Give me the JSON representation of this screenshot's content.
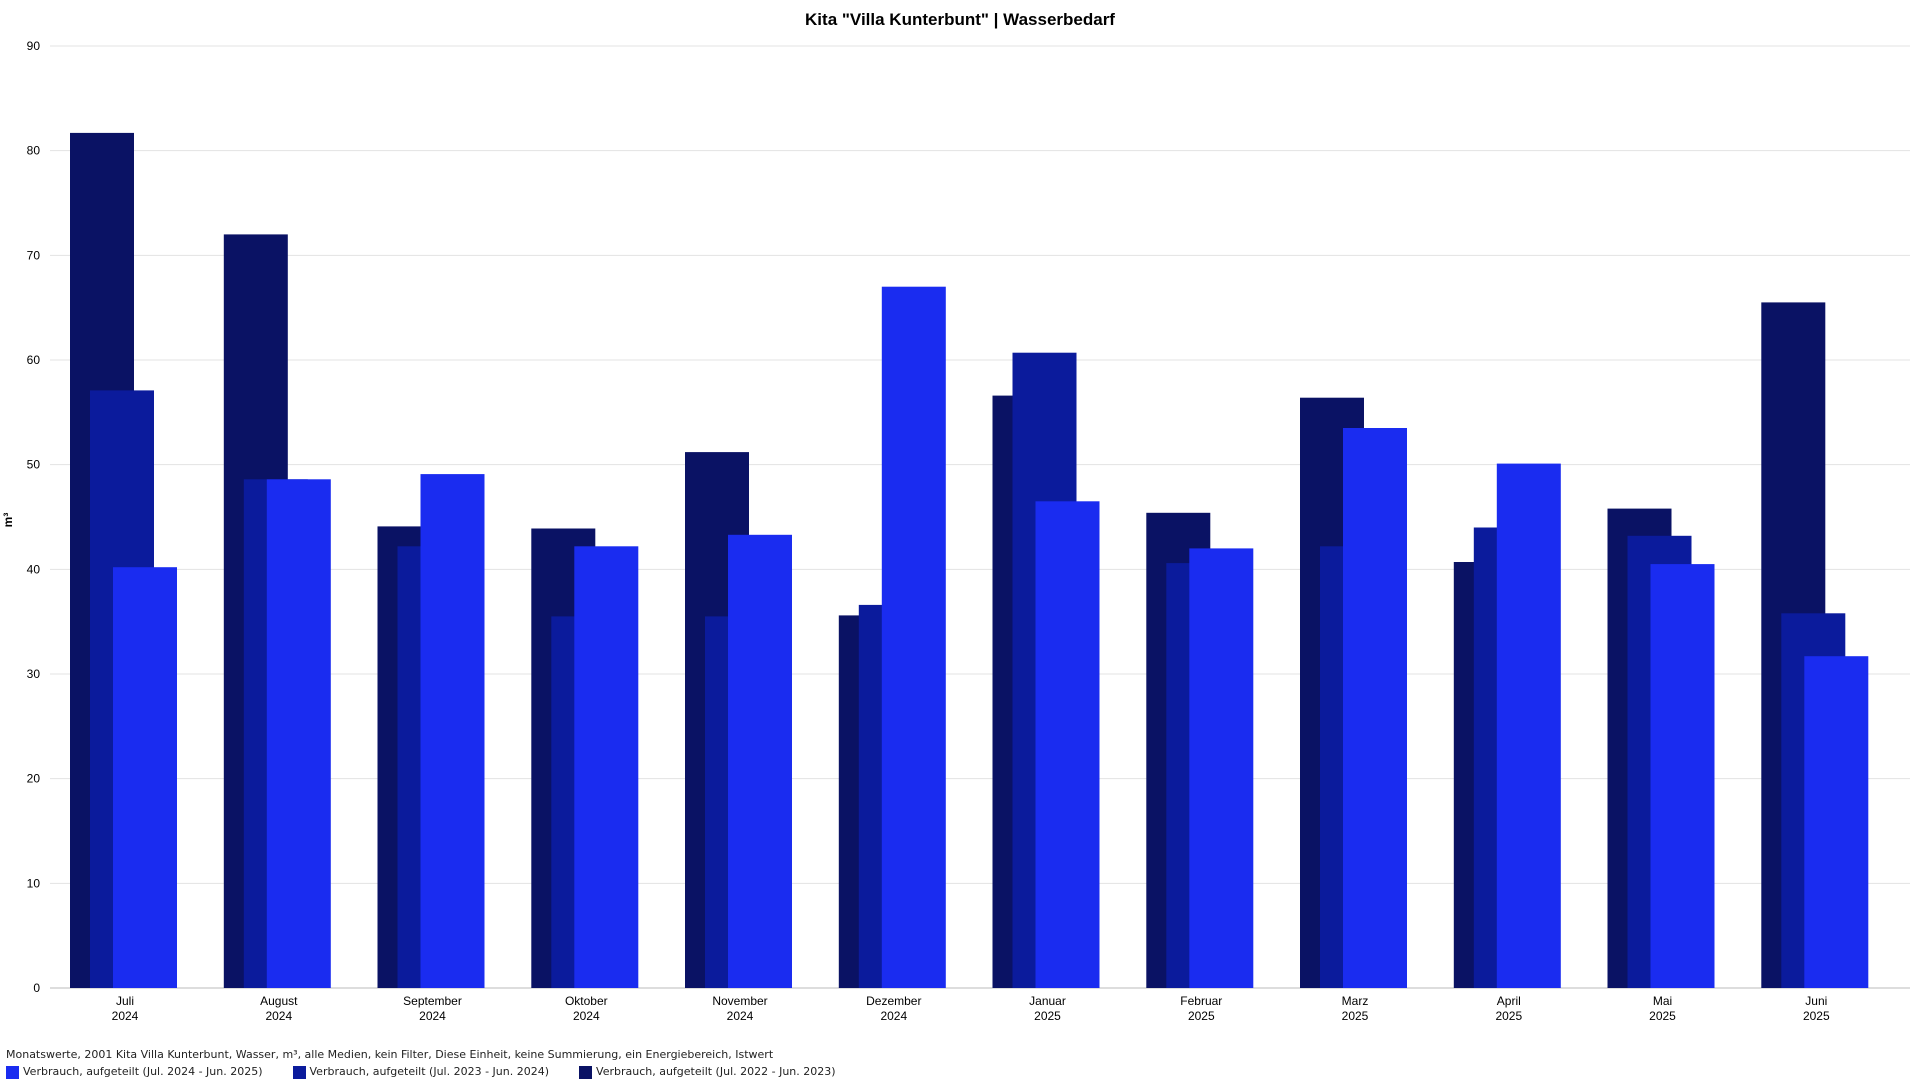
{
  "chart_data": {
    "type": "bar",
    "title": "Kita \"Villa Kunterbunt\" | Wasserbedarf",
    "ylabel": "m³",
    "ylim": [
      0,
      90
    ],
    "yticks": [
      0,
      10,
      20,
      30,
      40,
      50,
      60,
      70,
      80,
      90
    ],
    "grid": true,
    "legend_position": "bottom-left",
    "categories": [
      {
        "month": "Juli",
        "year": "2024"
      },
      {
        "month": "August",
        "year": "2024"
      },
      {
        "month": "September",
        "year": "2024"
      },
      {
        "month": "Oktober",
        "year": "2024"
      },
      {
        "month": "November",
        "year": "2024"
      },
      {
        "month": "Dezember",
        "year": "2024"
      },
      {
        "month": "Januar",
        "year": "2025"
      },
      {
        "month": "Februar",
        "year": "2025"
      },
      {
        "month": "Marz",
        "year": "2025"
      },
      {
        "month": "April",
        "year": "2025"
      },
      {
        "month": "Mai",
        "year": "2025"
      },
      {
        "month": "Juni",
        "year": "2025"
      }
    ],
    "series": [
      {
        "name": "Verbrauch, aufgeteilt (Jul. 2022 - Jun. 2023)",
        "color": "#0a1264",
        "values": [
          81.7,
          72.0,
          44.1,
          43.9,
          51.2,
          35.6,
          56.6,
          45.4,
          56.4,
          40.7,
          45.8,
          65.5
        ]
      },
      {
        "name": "Verbrauch, aufgeteilt (Jul. 2023 - Jun. 2024)",
        "color": "#0b1b9c",
        "values": [
          57.1,
          48.6,
          42.2,
          35.5,
          35.5,
          36.6,
          60.7,
          40.6,
          42.2,
          44.0,
          43.2,
          35.8
        ]
      },
      {
        "name": "Verbrauch, aufgeteilt (Jul. 2024 - Jun. 2025)",
        "color": "#1a2cf0",
        "values": [
          40.2,
          48.6,
          49.1,
          42.2,
          43.3,
          67.0,
          46.5,
          42.0,
          53.5,
          50.1,
          40.5,
          31.7
        ]
      }
    ]
  },
  "footer": {
    "description": "Monatswerte, 2001 Kita Villa Kunterbunt, Wasser, m³, alle Medien, kein Filter, Diese Einheit, keine Summierung, ein Energiebereich, Istwert"
  },
  "legend_order": [
    2,
    1,
    0
  ]
}
